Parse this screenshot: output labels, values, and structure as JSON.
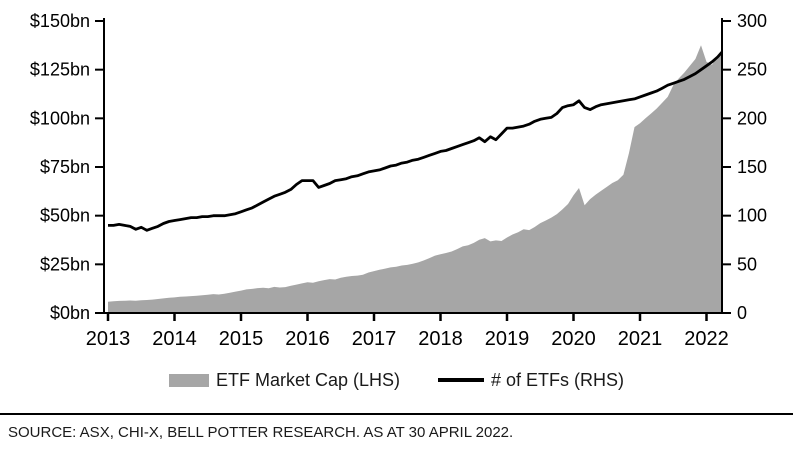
{
  "legend": {
    "items": [
      {
        "label": "ETF Market Cap (LHS)",
        "swatch": "area",
        "color": "#A6A6A6"
      },
      {
        "label": "# of ETFs (RHS)",
        "swatch": "line",
        "color": "#000000"
      }
    ]
  },
  "footer": {
    "source_text": "SOURCE: ASX, CHI-X, BELL POTTER RESEARCH. AS AT 30 APRIL 2022."
  },
  "colors": {
    "area_fill": "#A6A6A6",
    "line_stroke": "#000000",
    "axis": "#000000",
    "background": "#ffffff"
  },
  "chart_data": {
    "type": "area",
    "title": "",
    "subtitle": "",
    "grid": false,
    "legend_position": "bottom",
    "x_unit": "monthly, Jan 2013 to Apr 2022",
    "x_tick_labels": [
      "2013",
      "2014",
      "2015",
      "2016",
      "2017",
      "2018",
      "2019",
      "2020",
      "2021",
      "2022"
    ],
    "left_axis": {
      "tick_labels": [
        "$0bn",
        "$25bn",
        "$50bn",
        "$75bn",
        "$100bn",
        "$125bn",
        "$150bn"
      ],
      "tick_values": [
        0,
        25,
        50,
        75,
        100,
        125,
        150
      ],
      "range": [
        0,
        150
      ]
    },
    "right_axis": {
      "tick_labels": [
        "0",
        "50",
        "100",
        "150",
        "200",
        "250",
        "300"
      ],
      "tick_values": [
        0,
        50,
        100,
        150,
        200,
        250,
        300
      ],
      "range": [
        0,
        300
      ]
    },
    "series": [
      {
        "name": "ETF Market Cap (LHS)",
        "type": "area",
        "axis": "left",
        "color": "#A6A6A6",
        "values": [
          5.8,
          6.0,
          6.2,
          6.3,
          6.4,
          6.3,
          6.6,
          6.7,
          6.9,
          7.2,
          7.5,
          7.8,
          8.0,
          8.3,
          8.5,
          8.7,
          8.9,
          9.1,
          9.4,
          9.7,
          9.5,
          9.9,
          10.4,
          11.0,
          11.5,
          12.1,
          12.4,
          12.8,
          13.0,
          12.7,
          13.4,
          13.1,
          13.3,
          14.0,
          14.6,
          15.2,
          15.8,
          15.5,
          16.3,
          16.9,
          17.4,
          17.2,
          18.1,
          18.6,
          19.0,
          19.2,
          19.6,
          20.8,
          21.5,
          22.2,
          22.8,
          23.4,
          23.8,
          24.4,
          24.7,
          25.3,
          26.0,
          27.0,
          28.2,
          29.5,
          30.2,
          30.8,
          31.6,
          32.8,
          34.2,
          34.8,
          36.0,
          37.6,
          38.5,
          36.8,
          37.3,
          37.0,
          38.8,
          40.3,
          41.5,
          43.0,
          42.6,
          44.2,
          46.2,
          47.5,
          49.0,
          50.8,
          53.2,
          56.0,
          60.5,
          64.2,
          55.3,
          58.5,
          60.8,
          62.8,
          64.8,
          66.8,
          68.2,
          71.0,
          82.0,
          95.5,
          97.5,
          100.0,
          102.5,
          105.0,
          108.0,
          111.0,
          117.0,
          120.5,
          123.5,
          127.0,
          130.5,
          137.5,
          129.0,
          127.5,
          131.5,
          133.0
        ]
      },
      {
        "name": "# of ETFs (RHS)",
        "type": "line",
        "axis": "right",
        "color": "#000000",
        "values": [
          90,
          90,
          91,
          90,
          89,
          86,
          88,
          85,
          87,
          89,
          92,
          94,
          95,
          96,
          97,
          98,
          98,
          99,
          99,
          100,
          100,
          100,
          101,
          102,
          104,
          106,
          108,
          111,
          114,
          117,
          120,
          122,
          124,
          127,
          132,
          136,
          136,
          136,
          129,
          131,
          133,
          136,
          137,
          138,
          140,
          141,
          143,
          145,
          146,
          147,
          149,
          151,
          152,
          154,
          155,
          157,
          158,
          160,
          162,
          164,
          166,
          167,
          169,
          171,
          173,
          175,
          177,
          180,
          176,
          181,
          178,
          184,
          190,
          190,
          191,
          192,
          194,
          197,
          199,
          200,
          201,
          205,
          211,
          213,
          214,
          218,
          211,
          209,
          212,
          214,
          215,
          216,
          217,
          218,
          219,
          220,
          222,
          224,
          226,
          228,
          231,
          234,
          236,
          238,
          240,
          243,
          246,
          250,
          254,
          258,
          263,
          268
        ]
      }
    ]
  }
}
